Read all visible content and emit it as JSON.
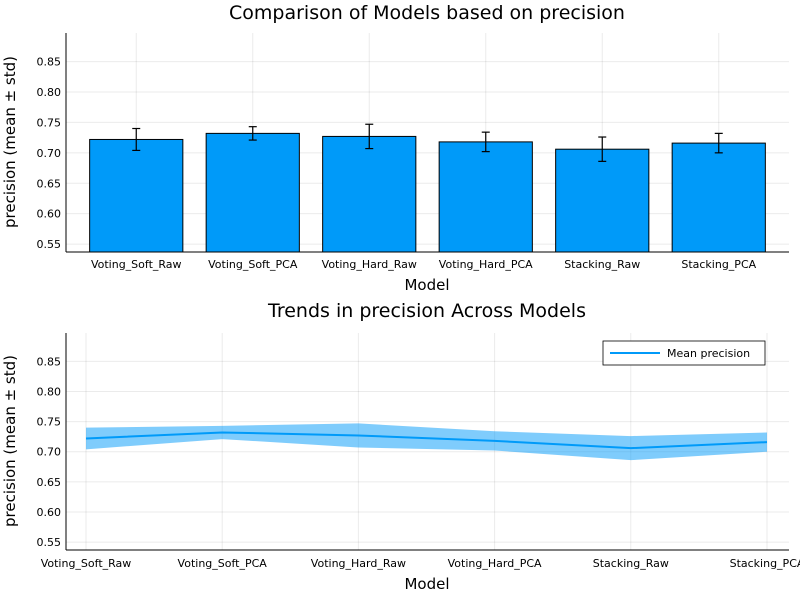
{
  "chart_data": [
    {
      "type": "bar",
      "title": "Comparison of Models based on precision",
      "xlabel": "Model",
      "ylabel": "precision (mean ± std)",
      "categories": [
        "Voting_Soft_Raw",
        "Voting_Soft_PCA",
        "Voting_Hard_Raw",
        "Voting_Hard_PCA",
        "Stacking_Raw",
        "Stacking_PCA"
      ],
      "values": [
        0.722,
        0.732,
        0.727,
        0.718,
        0.706,
        0.716
      ],
      "errors": [
        0.018,
        0.011,
        0.02,
        0.016,
        0.02,
        0.016
      ],
      "yticks": [
        0.55,
        0.6,
        0.65,
        0.7,
        0.75,
        0.8,
        0.85
      ],
      "ytick_labels": [
        "0.55",
        "0.60",
        "0.65",
        "0.70",
        "0.75",
        "0.80",
        "0.85"
      ],
      "ylim": [
        0.537,
        0.897
      ],
      "grid": true,
      "color": "#009af9"
    },
    {
      "type": "line",
      "title": "Trends in precision Across Models",
      "xlabel": "Model",
      "ylabel": "precision (mean ± std)",
      "categories": [
        "Voting_Soft_Raw",
        "Voting_Soft_PCA",
        "Voting_Hard_Raw",
        "Voting_Hard_PCA",
        "Stacking_Raw",
        "Stacking_PCA"
      ],
      "values": [
        0.722,
        0.732,
        0.727,
        0.718,
        0.706,
        0.716
      ],
      "errors": [
        0.018,
        0.011,
        0.02,
        0.016,
        0.02,
        0.016
      ],
      "yticks": [
        0.55,
        0.6,
        0.65,
        0.7,
        0.75,
        0.8,
        0.85
      ],
      "ytick_labels": [
        "0.55",
        "0.60",
        "0.65",
        "0.70",
        "0.75",
        "0.80",
        "0.85"
      ],
      "ylim": [
        0.537,
        0.897
      ],
      "grid": true,
      "legend": "Mean precision",
      "legend_position": "top-right",
      "color": "#009af9"
    }
  ]
}
